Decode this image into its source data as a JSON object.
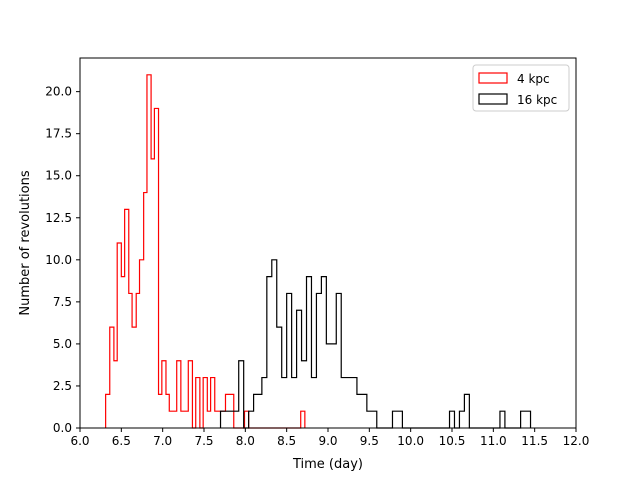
{
  "chart_data": {
    "type": "histogram",
    "xlabel": "Time (day)",
    "ylabel": "Number of revolutions",
    "xlim": [
      6.0,
      12.0
    ],
    "ylim": [
      0,
      22
    ],
    "xticks": [
      "6.0",
      "6.5",
      "7.0",
      "7.5",
      "8.0",
      "8.5",
      "9.0",
      "9.5",
      "10.0",
      "10.5",
      "11.0",
      "11.5",
      "12.0"
    ],
    "xtick_values": [
      6.0,
      6.5,
      7.0,
      7.5,
      8.0,
      8.5,
      9.0,
      9.5,
      10.0,
      10.5,
      11.0,
      11.5,
      12.0
    ],
    "yticks": [
      "0.0",
      "2.5",
      "5.0",
      "7.5",
      "10.0",
      "12.5",
      "15.0",
      "17.5",
      "20.0"
    ],
    "ytick_values": [
      0,
      2.5,
      5,
      7.5,
      10,
      12.5,
      15,
      17.5,
      20
    ],
    "grid": false,
    "legend_position": "top-right",
    "series": [
      {
        "name": "4 kpc",
        "color": "#ff0000",
        "bins": [
          [
            6.31,
            6.36,
            2
          ],
          [
            6.36,
            6.41,
            6
          ],
          [
            6.41,
            6.45,
            4
          ],
          [
            6.45,
            6.5,
            11
          ],
          [
            6.5,
            6.54,
            9
          ],
          [
            6.54,
            6.59,
            13
          ],
          [
            6.59,
            6.63,
            8
          ],
          [
            6.63,
            6.68,
            6
          ],
          [
            6.68,
            6.72,
            8
          ],
          [
            6.72,
            6.77,
            10
          ],
          [
            6.77,
            6.81,
            14
          ],
          [
            6.81,
            6.86,
            21
          ],
          [
            6.86,
            6.9,
            16
          ],
          [
            6.9,
            6.95,
            19
          ],
          [
            6.95,
            6.99,
            2
          ],
          [
            6.99,
            7.04,
            4
          ],
          [
            7.04,
            7.08,
            2
          ],
          [
            7.08,
            7.13,
            1
          ],
          [
            7.13,
            7.17,
            1
          ],
          [
            7.17,
            7.22,
            4
          ],
          [
            7.22,
            7.27,
            1
          ],
          [
            7.27,
            7.31,
            1
          ],
          [
            7.31,
            7.36,
            4
          ],
          [
            7.36,
            7.4,
            0
          ],
          [
            7.4,
            7.45,
            3
          ],
          [
            7.45,
            7.49,
            0
          ],
          [
            7.49,
            7.54,
            3
          ],
          [
            7.54,
            7.58,
            1
          ],
          [
            7.58,
            7.63,
            3
          ],
          [
            7.63,
            7.67,
            1
          ],
          [
            7.67,
            7.72,
            1
          ],
          [
            7.72,
            7.76,
            1
          ],
          [
            7.76,
            7.81,
            2
          ],
          [
            7.81,
            7.86,
            2
          ],
          [
            7.86,
            7.9,
            0
          ],
          [
            7.9,
            7.95,
            0
          ],
          [
            7.95,
            7.99,
            0
          ],
          [
            7.99,
            8.04,
            1
          ],
          [
            8.04,
            8.08,
            0
          ],
          [
            8.08,
            8.13,
            0
          ],
          [
            8.13,
            8.17,
            0
          ],
          [
            8.17,
            8.22,
            0
          ],
          [
            8.22,
            8.26,
            0
          ],
          [
            8.26,
            8.31,
            0
          ],
          [
            8.31,
            8.35,
            0
          ],
          [
            8.35,
            8.4,
            0
          ],
          [
            8.4,
            8.45,
            0
          ],
          [
            8.45,
            8.49,
            0
          ],
          [
            8.49,
            8.54,
            0
          ],
          [
            8.54,
            8.58,
            0
          ],
          [
            8.58,
            8.63,
            0
          ],
          [
            8.63,
            8.67,
            0
          ],
          [
            8.67,
            8.72,
            1
          ]
        ]
      },
      {
        "name": "16 kpc",
        "color": "#000000",
        "bins": [
          [
            7.7,
            7.8,
            1
          ],
          [
            7.8,
            7.92,
            1
          ],
          [
            7.92,
            7.98,
            4
          ],
          [
            7.98,
            8.04,
            0
          ],
          [
            8.04,
            8.1,
            1
          ],
          [
            8.1,
            8.2,
            2
          ],
          [
            8.2,
            8.26,
            3
          ],
          [
            8.26,
            8.32,
            9
          ],
          [
            8.32,
            8.38,
            10
          ],
          [
            8.38,
            8.44,
            6
          ],
          [
            8.44,
            8.5,
            3
          ],
          [
            8.5,
            8.56,
            8
          ],
          [
            8.56,
            8.62,
            3
          ],
          [
            8.62,
            8.68,
            7
          ],
          [
            8.68,
            8.74,
            4
          ],
          [
            8.74,
            8.8,
            9
          ],
          [
            8.8,
            8.86,
            3
          ],
          [
            8.86,
            8.92,
            8
          ],
          [
            8.92,
            8.98,
            9
          ],
          [
            8.98,
            9.04,
            5
          ],
          [
            9.04,
            9.1,
            5
          ],
          [
            9.1,
            9.16,
            8
          ],
          [
            9.16,
            9.22,
            3
          ],
          [
            9.22,
            9.28,
            3
          ],
          [
            9.28,
            9.35,
            3
          ],
          [
            9.35,
            9.41,
            2
          ],
          [
            9.41,
            9.47,
            2
          ],
          [
            9.47,
            9.53,
            1
          ],
          [
            9.53,
            9.59,
            1
          ],
          [
            9.59,
            9.78,
            0
          ],
          [
            9.78,
            9.9,
            1
          ],
          [
            9.9,
            10.47,
            0
          ],
          [
            10.47,
            10.53,
            1
          ],
          [
            10.53,
            10.59,
            0
          ],
          [
            10.59,
            10.65,
            1
          ],
          [
            10.65,
            10.71,
            2
          ],
          [
            10.71,
            11.08,
            0
          ],
          [
            11.08,
            11.14,
            1
          ],
          [
            11.14,
            11.33,
            0
          ],
          [
            11.33,
            11.45,
            1
          ]
        ]
      }
    ]
  }
}
